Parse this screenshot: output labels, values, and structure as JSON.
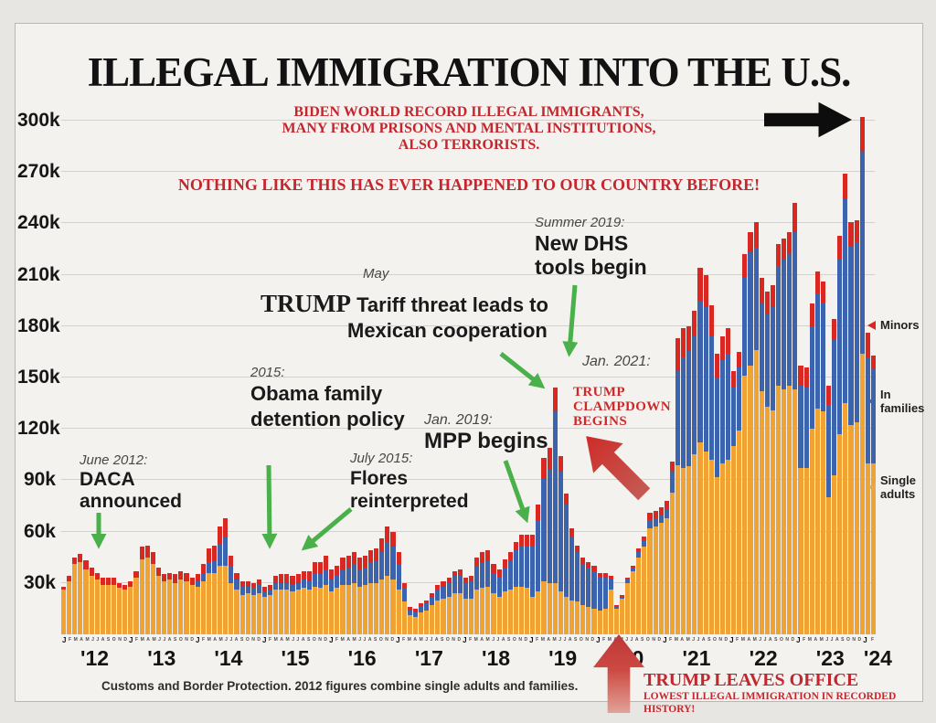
{
  "page": {
    "title": "ILLEGAL IMMIGRATION INTO THE U.S."
  },
  "callouts": {
    "biden_line1": "BIDEN WORLD RECORD ILLEGAL IMMIGRANTS,",
    "biden_line2": "MANY FROM PRISONS AND MENTAL INSTITUTIONS,",
    "biden_line3": "ALSO TERRORISTS.",
    "nothing": "NOTHING LIKE THIS HAS EVER HAPPENED TO OUR COUNTRY BEFORE!"
  },
  "annotations": {
    "daca": {
      "date": "June 2012:",
      "line1": "DACA",
      "line2": "announced"
    },
    "obama": {
      "date": "2015:",
      "line1": "Obama family",
      "line2": "detention policy"
    },
    "flores": {
      "date": "July 2015:",
      "line1": "Flores",
      "line2": "reinterpreted"
    },
    "tariff": {
      "date": "May",
      "emphasis": "TRUMP",
      "line1": " Tariff threat leads to",
      "line2": "Mexican cooperation"
    },
    "mpp": {
      "date": "Jan. 2019:",
      "line1": "MPP begins"
    },
    "dhs": {
      "date": "Summer 2019:",
      "line1": "New DHS",
      "line2": "tools begin"
    },
    "jan2021": {
      "date": "Jan. 2021:"
    },
    "clampdown": {
      "line1": "TRUMP",
      "line2": "CLAMPDOWN",
      "line3": "BEGINS"
    },
    "leaves": {
      "line1": "TRUMP LEAVES OFFICE",
      "line2": "LOWEST ILLEGAL IMMIGRATION IN RECORDED HISTORY!"
    }
  },
  "legend": {
    "minors": {
      "label": "Minors",
      "color": "#d92722"
    },
    "families": {
      "label1": "In",
      "label2": "families",
      "color": "#3c63ae"
    },
    "singles": {
      "label1": "Single",
      "label2": "adults",
      "color": "#e8a94e"
    }
  },
  "footnote": "Customs and Border Protection. 2012 figures combine single adults and families.",
  "chart_data": {
    "type": "bar",
    "stacked": true,
    "title": "ILLEGAL IMMIGRATION INTO THE U.S.",
    "unit": "thousands of monthly encounters",
    "xlabel": "",
    "ylabel": "",
    "ylim": [
      0,
      300
    ],
    "grid": true,
    "legend_position": "right",
    "ytick_values": [
      30,
      60,
      90,
      120,
      150,
      180,
      210,
      240,
      270,
      300
    ],
    "ytick_suffix": "k",
    "series_names": [
      "Single adults",
      "In families",
      "Minors"
    ],
    "series_colors": {
      "single_adults": "#f0a233",
      "in_families": "#3c63ae",
      "minors": "#d92722"
    },
    "month_letters": "JFMAMJJASOND",
    "x_years": [
      "'12",
      "'13",
      "'14",
      "'15",
      "'16",
      "'17",
      "'18",
      "'19",
      "'20",
      "'21",
      "'22",
      "'23",
      "'24"
    ],
    "year_order": [
      "2012",
      "2013",
      "2014",
      "2015",
      "2016",
      "2017",
      "2018",
      "2019",
      "2020",
      "2021",
      "2022",
      "2023",
      "2024"
    ],
    "months_in_last_year": 2,
    "values_note": "each month = [single_adults, in_families, minors] in thousands; 2012-2013 families counted within single adults",
    "values_by_year": {
      "2012": [
        [
          26,
          0,
          2
        ],
        [
          31,
          0,
          3
        ],
        [
          41,
          0,
          4
        ],
        [
          42,
          0,
          5
        ],
        [
          38,
          0,
          5
        ],
        [
          34,
          0,
          5
        ],
        [
          32,
          0,
          4
        ],
        [
          29,
          0,
          4
        ],
        [
          29,
          0,
          4
        ],
        [
          29,
          0,
          4
        ],
        [
          27,
          0,
          3
        ],
        [
          26,
          0,
          3
        ]
      ],
      "2013": [
        [
          28,
          0,
          3
        ],
        [
          33,
          0,
          4
        ],
        [
          44,
          0,
          7
        ],
        [
          45,
          0,
          7
        ],
        [
          41,
          0,
          7
        ],
        [
          34,
          0,
          5
        ],
        [
          31,
          0,
          4
        ],
        [
          32,
          0,
          4
        ],
        [
          30,
          0,
          5
        ],
        [
          32,
          0,
          5
        ],
        [
          31,
          0,
          5
        ],
        [
          29,
          0,
          4
        ]
      ],
      "2014": [
        [
          28,
          3,
          4
        ],
        [
          31,
          4,
          6
        ],
        [
          36,
          6,
          8
        ],
        [
          36,
          7,
          9
        ],
        [
          40,
          13,
          10
        ],
        [
          40,
          17,
          11
        ],
        [
          30,
          10,
          6
        ],
        [
          26,
          6,
          4
        ],
        [
          23,
          5,
          3
        ],
        [
          24,
          4,
          3
        ],
        [
          23,
          4,
          3
        ],
        [
          24,
          5,
          3
        ]
      ],
      "2015": [
        [
          22,
          3,
          3
        ],
        [
          23,
          3,
          3
        ],
        [
          26,
          4,
          4
        ],
        [
          26,
          4,
          5
        ],
        [
          26,
          4,
          5
        ],
        [
          25,
          4,
          5
        ],
        [
          26,
          4,
          5
        ],
        [
          27,
          5,
          5
        ],
        [
          26,
          5,
          6
        ],
        [
          28,
          7,
          7
        ],
        [
          27,
          8,
          7
        ],
        [
          29,
          9,
          8
        ]
      ],
      "2016": [
        [
          25,
          7,
          6
        ],
        [
          27,
          7,
          6
        ],
        [
          29,
          9,
          7
        ],
        [
          29,
          10,
          7
        ],
        [
          30,
          11,
          7
        ],
        [
          28,
          10,
          7
        ],
        [
          29,
          10,
          7
        ],
        [
          30,
          12,
          7
        ],
        [
          30,
          13,
          7
        ],
        [
          32,
          16,
          8
        ],
        [
          34,
          20,
          9
        ],
        [
          32,
          19,
          9
        ]
      ],
      "2017": [
        [
          26,
          15,
          7
        ],
        [
          19,
          8,
          3
        ],
        [
          11,
          3,
          2
        ],
        [
          10,
          3,
          2
        ],
        [
          13,
          3,
          2
        ],
        [
          14,
          4,
          2
        ],
        [
          17,
          5,
          2
        ],
        [
          20,
          6,
          3
        ],
        [
          21,
          7,
          3
        ],
        [
          22,
          8,
          3
        ],
        [
          24,
          10,
          3
        ],
        [
          24,
          10,
          4
        ]
      ],
      "2018": [
        [
          21,
          9,
          3
        ],
        [
          21,
          10,
          3
        ],
        [
          26,
          14,
          5
        ],
        [
          27,
          15,
          6
        ],
        [
          28,
          15,
          6
        ],
        [
          24,
          12,
          5
        ],
        [
          22,
          11,
          5
        ],
        [
          25,
          14,
          5
        ],
        [
          26,
          17,
          5
        ],
        [
          28,
          21,
          5
        ],
        [
          28,
          24,
          6
        ],
        [
          27,
          25,
          6
        ]
      ],
      "2019": [
        [
          22,
          30,
          6
        ],
        [
          25,
          42,
          9
        ],
        [
          31,
          60,
          12
        ],
        [
          30,
          66,
          13
        ],
        [
          30,
          100,
          14
        ],
        [
          25,
          70,
          9
        ],
        [
          22,
          54,
          6
        ],
        [
          20,
          37,
          5
        ],
        [
          19,
          29,
          4
        ],
        [
          17,
          24,
          4
        ],
        [
          16,
          23,
          3
        ],
        [
          15,
          22,
          3
        ]
      ],
      "2020": [
        [
          14,
          19,
          3
        ],
        [
          15,
          18,
          3
        ],
        [
          26,
          6,
          2
        ],
        [
          15,
          1,
          1
        ],
        [
          21,
          1,
          1
        ],
        [
          30,
          2,
          1
        ],
        [
          37,
          2,
          1
        ],
        [
          45,
          3,
          2
        ],
        [
          51,
          4,
          2
        ],
        [
          62,
          5,
          4
        ],
        [
          63,
          5,
          4
        ],
        [
          65,
          5,
          4
        ]
      ],
      "2021": [
        [
          68,
          5,
          5
        ],
        [
          83,
          12,
          6
        ],
        [
          99,
          55,
          19
        ],
        [
          97,
          65,
          17
        ],
        [
          98,
          68,
          14
        ],
        [
          105,
          69,
          15
        ],
        [
          112,
          83,
          19
        ],
        [
          107,
          84,
          19
        ],
        [
          102,
          72,
          18
        ],
        [
          92,
          58,
          14
        ],
        [
          100,
          60,
          14
        ],
        [
          102,
          62,
          15
        ]
      ],
      "2022": [
        [
          110,
          34,
          10
        ],
        [
          119,
          37,
          9
        ],
        [
          151,
          57,
          14
        ],
        [
          157,
          66,
          12
        ],
        [
          166,
          60,
          15
        ],
        [
          142,
          52,
          14
        ],
        [
          133,
          54,
          13
        ],
        [
          131,
          60,
          13
        ],
        [
          145,
          70,
          13
        ],
        [
          143,
          76,
          12
        ],
        [
          145,
          77,
          13
        ],
        [
          143,
          92,
          17
        ]
      ],
      "2023": [
        [
          97,
          48,
          12
        ],
        [
          97,
          47,
          12
        ],
        [
          120,
          60,
          13
        ],
        [
          132,
          67,
          13
        ],
        [
          130,
          64,
          12
        ],
        [
          80,
          54,
          11
        ],
        [
          93,
          79,
          12
        ],
        [
          117,
          102,
          14
        ],
        [
          135,
          119,
          15
        ],
        [
          122,
          105,
          14
        ],
        [
          124,
          105,
          13
        ],
        [
          164,
          118,
          20
        ]
      ],
      "2024": [
        [
          100,
          62,
          14
        ],
        [
          100,
          55,
          8
        ]
      ]
    }
  }
}
